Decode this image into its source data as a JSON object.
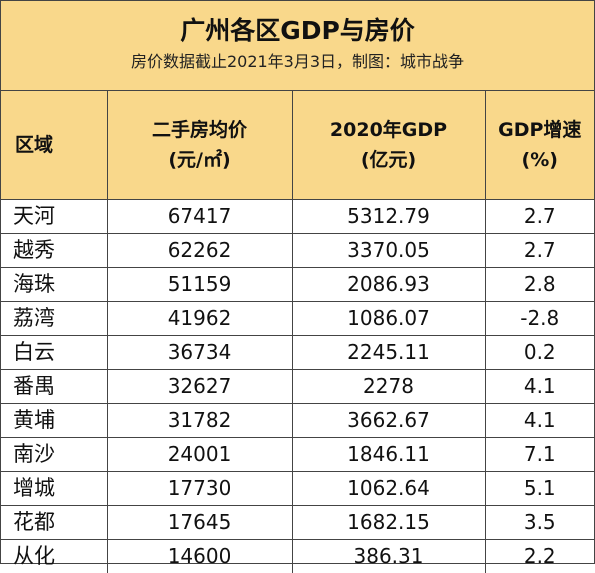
{
  "title": "广州各区GDP与房价",
  "subtitle": "房价数据截止2021年3月3日，制图：城市战争",
  "headers": {
    "region": "区域",
    "price_l1": "二手房均价",
    "price_l2": "(元/㎡)",
    "gdp_l1": "2020年GDP",
    "gdp_l2": "(亿元)",
    "growth_l1": "GDP增速",
    "growth_l2": "(%)"
  },
  "rows": [
    {
      "region": "天河",
      "price": "67417",
      "gdp": "5312.79",
      "growth": "2.7"
    },
    {
      "region": "越秀",
      "price": "62262",
      "gdp": "3370.05",
      "growth": "2.7"
    },
    {
      "region": "海珠",
      "price": "51159",
      "gdp": "2086.93",
      "growth": "2.8"
    },
    {
      "region": "荔湾",
      "price": "41962",
      "gdp": "1086.07",
      "growth": "-2.8"
    },
    {
      "region": "白云",
      "price": "36734",
      "gdp": "2245.11",
      "growth": "0.2"
    },
    {
      "region": "番禺",
      "price": "32627",
      "gdp": "2278",
      "growth": "4.1"
    },
    {
      "region": "黄埔",
      "price": "31782",
      "gdp": "3662.67",
      "growth": "4.1"
    },
    {
      "region": "南沙",
      "price": "24001",
      "gdp": "1846.11",
      "growth": "7.1"
    },
    {
      "region": "增城",
      "price": "17730",
      "gdp": "1062.64",
      "growth": "5.1"
    },
    {
      "region": "花都",
      "price": "17645",
      "gdp": "1682.15",
      "growth": "3.5"
    },
    {
      "region": "从化",
      "price": "14600",
      "gdp": "386.31",
      "growth": "2.2"
    }
  ],
  "colors": {
    "header_bg": "#f9d88b",
    "border": "#444444"
  }
}
